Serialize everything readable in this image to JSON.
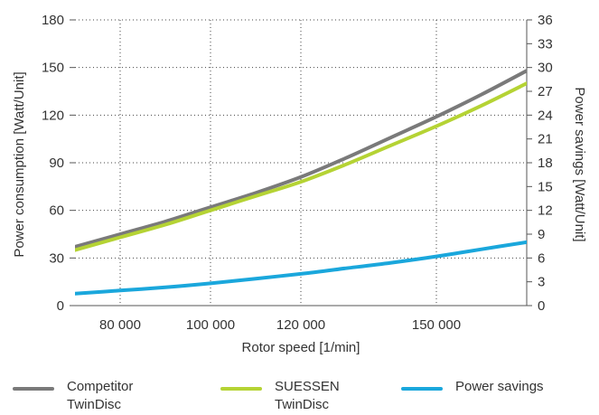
{
  "chart_data": {
    "type": "line",
    "x_min": 70000,
    "x_max": 170000,
    "x_ticks": [
      80000,
      100000,
      120000,
      150000
    ],
    "x_tick_labels": [
      "80 000",
      "100 000",
      "120 000",
      "150 000"
    ],
    "xlabel": "Rotor speed [1/min]",
    "ylabel_left": "Power consumption [Watt/Unit]",
    "ylabel_right": "Power savings [Watt/Unit]",
    "ylim_left": [
      0,
      180
    ],
    "yticks_left": [
      0,
      30,
      60,
      90,
      120,
      150,
      180
    ],
    "ylim_right": [
      0,
      36
    ],
    "yticks_right": [
      0,
      3,
      6,
      9,
      12,
      15,
      18,
      21,
      24,
      27,
      30,
      33,
      36
    ],
    "grid": true,
    "legend_position": "bottom",
    "series": [
      {
        "name": "Competitor TwinDisc",
        "name_lines": [
          "Competitor",
          "TwinDisc"
        ],
        "axis": "left",
        "color": "#7a7a7a",
        "x": [
          70000,
          80000,
          90000,
          100000,
          110000,
          120000,
          130000,
          140000,
          150000,
          160000,
          170000
        ],
        "values": [
          37,
          45,
          53,
          62,
          71,
          81,
          93,
          106,
          119,
          133,
          148
        ]
      },
      {
        "name": "SUESSEN TwinDisc",
        "name_lines": [
          "SUESSEN",
          "TwinDisc"
        ],
        "axis": "left",
        "color": "#b5d334",
        "x": [
          70000,
          80000,
          90000,
          100000,
          110000,
          120000,
          130000,
          140000,
          150000,
          160000,
          170000
        ],
        "values": [
          35,
          43,
          51,
          60,
          69,
          78,
          89,
          101,
          113,
          126,
          140
        ]
      },
      {
        "name": "Power savings",
        "name_lines": [
          "Power savings"
        ],
        "axis": "right",
        "color": "#1aa7dc",
        "x": [
          70000,
          80000,
          90000,
          100000,
          110000,
          120000,
          130000,
          140000,
          150000,
          160000,
          170000
        ],
        "values": [
          1.5,
          1.9,
          2.3,
          2.8,
          3.4,
          4.0,
          4.7,
          5.4,
          6.2,
          7.1,
          8.0
        ]
      }
    ]
  }
}
